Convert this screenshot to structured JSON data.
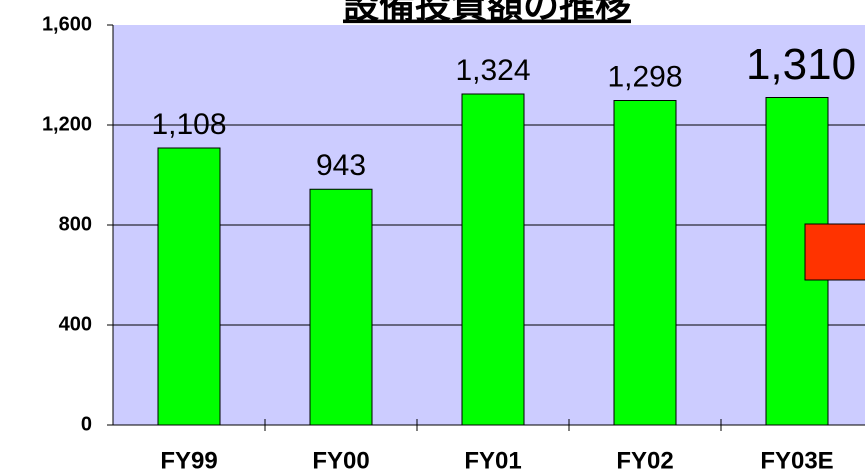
{
  "chart_data": {
    "type": "bar",
    "title": "設備投資額の推移",
    "categories": [
      "FY99",
      "FY00",
      "FY01",
      "FY02",
      "FY03E"
    ],
    "values": [
      1108,
      943,
      1324,
      1298,
      1310
    ],
    "value_labels": [
      "1,108",
      "943",
      "1,324",
      "1,298",
      "1,310"
    ],
    "color": "#00ff00",
    "ylim": [
      0,
      1600
    ],
    "yticks": [
      0,
      400,
      800,
      {
        "value": 1200,
        "label": "1,200"
      },
      {
        "value": 1600,
        "label": "1,600"
      }
    ],
    "grid": true
  }
}
